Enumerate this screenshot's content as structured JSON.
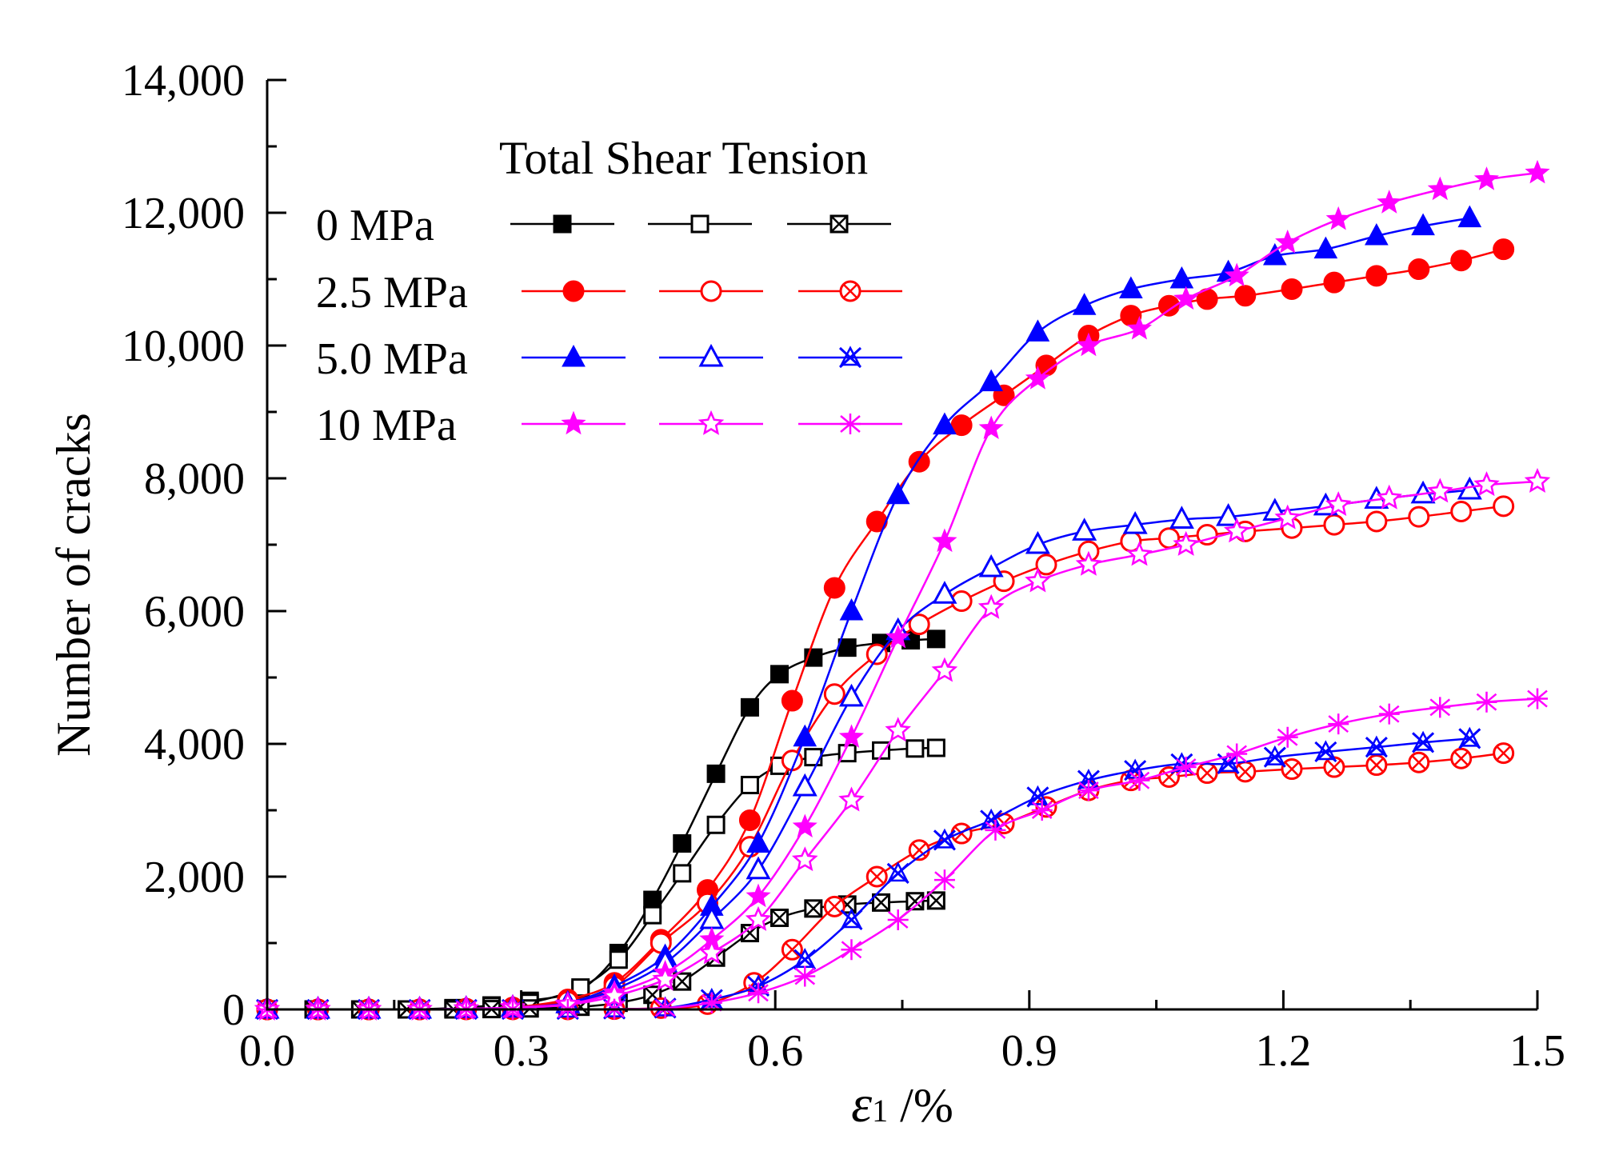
{
  "chart_data": {
    "type": "line",
    "xlabel_symbol": "ε",
    "xlabel_subscript": "1",
    "xlabel_unit": " /%",
    "ylabel": "Number of cracks",
    "xlim": [
      0,
      1.5
    ],
    "ylim": [
      0,
      14000
    ],
    "xticks": [
      0.0,
      0.3,
      0.6,
      0.9,
      1.2,
      1.5
    ],
    "xtick_labels": [
      "0.0",
      "0.3",
      "0.6",
      "0.9",
      "1.2",
      "1.5"
    ],
    "yticks": [
      0,
      2000,
      4000,
      6000,
      8000,
      10000,
      12000,
      14000
    ],
    "ytick_labels": [
      "0",
      "2,000",
      "4,000",
      "6,000",
      "8,000",
      "10,000",
      "12,000",
      "14,000"
    ],
    "legend": {
      "header": "Total Shear Tension",
      "position": "top-left",
      "rows": [
        "0 MPa",
        "2.5 MPa",
        "5.0 MPa",
        "10 MPa"
      ]
    },
    "series": [
      {
        "name": "0 MPa Total",
        "color": "#000000",
        "marker": "filled-square",
        "x": [
          0.0,
          0.055,
          0.11,
          0.165,
          0.22,
          0.265,
          0.31,
          0.37,
          0.415,
          0.455,
          0.49,
          0.53,
          0.57,
          0.605,
          0.645,
          0.685,
          0.725,
          0.76,
          0.79
        ],
        "y": [
          0,
          0,
          0,
          0,
          20,
          60,
          130,
          300,
          850,
          1650,
          2500,
          3550,
          4550,
          5050,
          5300,
          5450,
          5520,
          5560,
          5580
        ]
      },
      {
        "name": "0 MPa Shear",
        "color": "#000000",
        "marker": "open-square",
        "x": [
          0.0,
          0.055,
          0.11,
          0.165,
          0.22,
          0.265,
          0.31,
          0.37,
          0.415,
          0.455,
          0.49,
          0.53,
          0.57,
          0.605,
          0.645,
          0.685,
          0.725,
          0.765,
          0.79
        ],
        "y": [
          0,
          0,
          0,
          0,
          15,
          50,
          100,
          330,
          750,
          1420,
          2050,
          2780,
          3380,
          3670,
          3800,
          3860,
          3900,
          3930,
          3940
        ]
      },
      {
        "name": "0 MPa Tension",
        "color": "#000000",
        "marker": "crossed-square",
        "x": [
          0.0,
          0.055,
          0.11,
          0.165,
          0.22,
          0.265,
          0.31,
          0.37,
          0.415,
          0.455,
          0.49,
          0.53,
          0.57,
          0.605,
          0.645,
          0.685,
          0.725,
          0.765,
          0.79
        ],
        "y": [
          0,
          0,
          0,
          0,
          0,
          5,
          15,
          40,
          100,
          220,
          420,
          780,
          1150,
          1380,
          1520,
          1580,
          1610,
          1630,
          1640
        ]
      },
      {
        "name": "2.5 MPa Total",
        "color": "#ff0000",
        "marker": "filled-circle",
        "x": [
          0.0,
          0.06,
          0.12,
          0.18,
          0.235,
          0.29,
          0.355,
          0.41,
          0.465,
          0.52,
          0.57,
          0.62,
          0.67,
          0.72,
          0.77,
          0.82,
          0.87,
          0.92,
          0.97,
          1.02,
          1.065,
          1.11,
          1.155,
          1.21,
          1.26,
          1.31,
          1.36,
          1.41,
          1.46
        ],
        "y": [
          0,
          0,
          0,
          0,
          10,
          30,
          150,
          400,
          1050,
          1800,
          2850,
          4650,
          6350,
          7350,
          8250,
          8800,
          9250,
          9700,
          10150,
          10450,
          10600,
          10700,
          10750,
          10850,
          10950,
          11050,
          11150,
          11280,
          11450
        ]
      },
      {
        "name": "2.5 MPa Shear",
        "color": "#ff0000",
        "marker": "open-circle",
        "x": [
          0.0,
          0.06,
          0.12,
          0.18,
          0.235,
          0.29,
          0.355,
          0.41,
          0.465,
          0.52,
          0.57,
          0.62,
          0.67,
          0.72,
          0.77,
          0.82,
          0.87,
          0.92,
          0.97,
          1.02,
          1.065,
          1.11,
          1.155,
          1.21,
          1.26,
          1.31,
          1.36,
          1.41,
          1.46
        ],
        "y": [
          0,
          0,
          0,
          0,
          10,
          25,
          120,
          350,
          1000,
          1600,
          2450,
          3750,
          4750,
          5350,
          5800,
          6150,
          6450,
          6700,
          6900,
          7050,
          7100,
          7150,
          7200,
          7250,
          7300,
          7350,
          7420,
          7500,
          7580
        ]
      },
      {
        "name": "2.5 MPa Tension",
        "color": "#ff0000",
        "marker": "crossed-circle",
        "x": [
          0.0,
          0.06,
          0.12,
          0.18,
          0.235,
          0.29,
          0.355,
          0.41,
          0.465,
          0.52,
          0.575,
          0.62,
          0.67,
          0.72,
          0.77,
          0.82,
          0.87,
          0.92,
          0.97,
          1.02,
          1.065,
          1.11,
          1.155,
          1.21,
          1.26,
          1.31,
          1.36,
          1.41,
          1.46
        ],
        "y": [
          0,
          0,
          0,
          0,
          0,
          0,
          0,
          5,
          20,
          80,
          400,
          900,
          1550,
          2000,
          2400,
          2650,
          2800,
          3050,
          3300,
          3450,
          3500,
          3560,
          3580,
          3620,
          3650,
          3680,
          3720,
          3780,
          3860
        ]
      },
      {
        "name": "5.0 MPa Total",
        "color": "#0000ff",
        "marker": "filled-triangle",
        "x": [
          0.0,
          0.06,
          0.12,
          0.18,
          0.235,
          0.29,
          0.355,
          0.41,
          0.47,
          0.525,
          0.58,
          0.635,
          0.69,
          0.745,
          0.8,
          0.855,
          0.91,
          0.965,
          1.02,
          1.08,
          1.135,
          1.19,
          1.25,
          1.31,
          1.365,
          1.42
        ],
        "y": [
          0,
          0,
          0,
          0,
          10,
          30,
          100,
          350,
          800,
          1550,
          2500,
          4100,
          6000,
          7750,
          8800,
          9450,
          10200,
          10600,
          10850,
          11000,
          11100,
          11350,
          11450,
          11650,
          11800,
          11920
        ]
      },
      {
        "name": "5.0 MPa Shear",
        "color": "#0000ff",
        "marker": "open-triangle",
        "x": [
          0.0,
          0.06,
          0.12,
          0.18,
          0.235,
          0.29,
          0.355,
          0.41,
          0.47,
          0.525,
          0.58,
          0.635,
          0.69,
          0.745,
          0.8,
          0.855,
          0.91,
          0.965,
          1.025,
          1.08,
          1.135,
          1.19,
          1.25,
          1.31,
          1.365,
          1.42
        ],
        "y": [
          0,
          0,
          0,
          0,
          10,
          25,
          80,
          300,
          700,
          1350,
          2100,
          3350,
          4700,
          5700,
          6250,
          6650,
          7000,
          7200,
          7300,
          7380,
          7420,
          7500,
          7580,
          7680,
          7760,
          7820
        ]
      },
      {
        "name": "5.0 MPa Tension",
        "color": "#0000ff",
        "marker": "crossed-triangle",
        "x": [
          0.0,
          0.06,
          0.12,
          0.18,
          0.235,
          0.29,
          0.355,
          0.41,
          0.47,
          0.525,
          0.58,
          0.635,
          0.69,
          0.745,
          0.8,
          0.855,
          0.91,
          0.97,
          1.025,
          1.08,
          1.135,
          1.19,
          1.25,
          1.31,
          1.365,
          1.42
        ],
        "y": [
          0,
          0,
          0,
          0,
          0,
          0,
          0,
          5,
          20,
          150,
          350,
          750,
          1350,
          2050,
          2550,
          2850,
          3200,
          3450,
          3600,
          3700,
          3700,
          3800,
          3880,
          3950,
          4020,
          4080
        ]
      },
      {
        "name": "10 MPa Total",
        "color": "#ff00ff",
        "marker": "filled-star",
        "x": [
          0.0,
          0.06,
          0.12,
          0.18,
          0.235,
          0.29,
          0.355,
          0.41,
          0.47,
          0.525,
          0.58,
          0.635,
          0.69,
          0.745,
          0.8,
          0.855,
          0.91,
          0.97,
          1.03,
          1.085,
          1.145,
          1.205,
          1.265,
          1.325,
          1.385,
          1.44,
          1.5
        ],
        "y": [
          0,
          0,
          0,
          0,
          10,
          30,
          80,
          250,
          550,
          1050,
          1700,
          2750,
          4100,
          5600,
          7050,
          8750,
          9500,
          10000,
          10250,
          10700,
          11050,
          11550,
          11900,
          12150,
          12350,
          12500,
          12600
        ]
      },
      {
        "name": "10 MPa Shear",
        "color": "#ff00ff",
        "marker": "open-star",
        "x": [
          0.0,
          0.06,
          0.12,
          0.18,
          0.235,
          0.29,
          0.355,
          0.41,
          0.47,
          0.525,
          0.58,
          0.635,
          0.69,
          0.745,
          0.8,
          0.855,
          0.91,
          0.97,
          1.03,
          1.085,
          1.145,
          1.205,
          1.265,
          1.325,
          1.385,
          1.44,
          1.5
        ],
        "y": [
          0,
          0,
          0,
          0,
          10,
          25,
          70,
          200,
          450,
          850,
          1350,
          2250,
          3150,
          4200,
          5100,
          6050,
          6450,
          6700,
          6850,
          7000,
          7200,
          7400,
          7600,
          7700,
          7800,
          7900,
          7950
        ]
      },
      {
        "name": "10 MPa Tension",
        "color": "#ff00ff",
        "marker": "asterisk",
        "x": [
          0.0,
          0.06,
          0.12,
          0.18,
          0.235,
          0.29,
          0.355,
          0.41,
          0.47,
          0.525,
          0.58,
          0.635,
          0.69,
          0.745,
          0.8,
          0.86,
          0.915,
          0.97,
          1.03,
          1.085,
          1.145,
          1.205,
          1.265,
          1.325,
          1.385,
          1.44,
          1.5
        ],
        "y": [
          0,
          0,
          0,
          0,
          0,
          0,
          0,
          5,
          20,
          100,
          250,
          500,
          900,
          1350,
          1950,
          2700,
          3000,
          3300,
          3450,
          3650,
          3850,
          4100,
          4300,
          4450,
          4550,
          4630,
          4680
        ]
      }
    ]
  }
}
